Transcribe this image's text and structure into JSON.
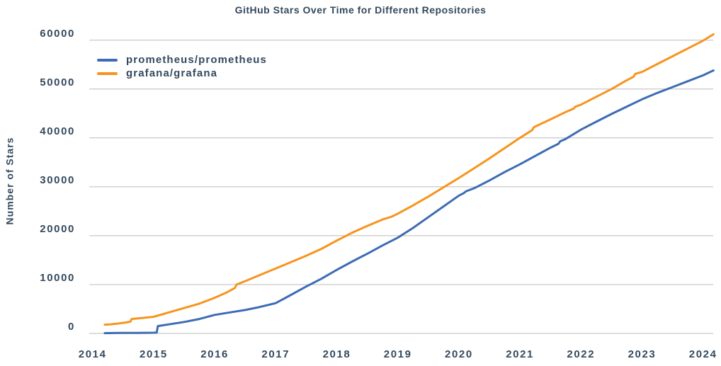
{
  "figure": {
    "background": "#ffffff",
    "text_color": "#34495E",
    "grid_color": "#BBBBBB"
  },
  "chart_data": {
    "type": "line",
    "title": "GitHub Stars Over Time for Different Repositories",
    "xlabel": "",
    "ylabel": "Number of Stars",
    "xlim": [
      2013.8,
      2024.2
    ],
    "ylim": [
      0,
      60000
    ],
    "grid": "horizontal",
    "legend_position": "upper-left-inside",
    "x_ticks": [
      {
        "value": 2014,
        "label": "2014"
      },
      {
        "value": 2015,
        "label": "2015"
      },
      {
        "value": 2016,
        "label": "2016"
      },
      {
        "value": 2017,
        "label": "2017"
      },
      {
        "value": 2018,
        "label": "2018"
      },
      {
        "value": 2019,
        "label": "2019"
      },
      {
        "value": 2020,
        "label": "2020"
      },
      {
        "value": 2021,
        "label": "2021"
      },
      {
        "value": 2022,
        "label": "2022"
      },
      {
        "value": 2023,
        "label": "2023"
      },
      {
        "value": 2024,
        "label": "2024"
      }
    ],
    "y_ticks": [
      {
        "value": 0,
        "label": "0"
      },
      {
        "value": 10000,
        "label": "10000"
      },
      {
        "value": 20000,
        "label": "20000"
      },
      {
        "value": 30000,
        "label": "30000"
      },
      {
        "value": 40000,
        "label": "40000"
      },
      {
        "value": 50000,
        "label": "50000"
      },
      {
        "value": 60000,
        "label": "60000"
      }
    ],
    "series": [
      {
        "name": "prometheus/prometheus",
        "color": "#3D6CB4",
        "points": [
          [
            2014.2,
            60
          ],
          [
            2014.35,
            80
          ],
          [
            2014.5,
            100
          ],
          [
            2014.75,
            120
          ],
          [
            2015.0,
            150
          ],
          [
            2015.05,
            170
          ],
          [
            2015.07,
            1500
          ],
          [
            2015.25,
            1850
          ],
          [
            2015.5,
            2350
          ],
          [
            2015.75,
            2950
          ],
          [
            2016.0,
            3800
          ],
          [
            2016.25,
            4300
          ],
          [
            2016.5,
            4800
          ],
          [
            2016.7,
            5300
          ],
          [
            2017.0,
            6200
          ],
          [
            2017.25,
            7900
          ],
          [
            2017.5,
            9600
          ],
          [
            2017.75,
            11200
          ],
          [
            2018.0,
            13000
          ],
          [
            2018.25,
            14700
          ],
          [
            2018.5,
            16300
          ],
          [
            2018.75,
            18000
          ],
          [
            2019.0,
            19600
          ],
          [
            2019.25,
            21600
          ],
          [
            2019.5,
            23800
          ],
          [
            2019.75,
            26000
          ],
          [
            2020.0,
            28200
          ],
          [
            2020.08,
            28700
          ],
          [
            2020.12,
            29100
          ],
          [
            2020.25,
            29700
          ],
          [
            2020.5,
            31300
          ],
          [
            2020.75,
            33000
          ],
          [
            2021.0,
            34600
          ],
          [
            2021.25,
            36300
          ],
          [
            2021.5,
            38000
          ],
          [
            2021.63,
            38800
          ],
          [
            2021.66,
            39300
          ],
          [
            2021.75,
            39800
          ],
          [
            2022.0,
            41700
          ],
          [
            2022.25,
            43300
          ],
          [
            2022.5,
            44900
          ],
          [
            2022.75,
            46400
          ],
          [
            2023.0,
            47900
          ],
          [
            2023.25,
            49200
          ],
          [
            2023.5,
            50400
          ],
          [
            2023.75,
            51600
          ],
          [
            2024.0,
            52800
          ],
          [
            2024.17,
            53800
          ]
        ]
      },
      {
        "name": "grafana/grafana",
        "color": "#F7941E",
        "points": [
          [
            2014.2,
            1800
          ],
          [
            2014.28,
            1850
          ],
          [
            2014.4,
            2000
          ],
          [
            2014.55,
            2250
          ],
          [
            2014.62,
            2400
          ],
          [
            2014.64,
            2950
          ],
          [
            2014.8,
            3150
          ],
          [
            2015.0,
            3400
          ],
          [
            2015.25,
            4300
          ],
          [
            2015.5,
            5200
          ],
          [
            2015.75,
            6100
          ],
          [
            2016.0,
            7300
          ],
          [
            2016.2,
            8400
          ],
          [
            2016.33,
            9300
          ],
          [
            2016.36,
            10000
          ],
          [
            2016.5,
            10700
          ],
          [
            2016.75,
            12000
          ],
          [
            2017.0,
            13300
          ],
          [
            2017.25,
            14600
          ],
          [
            2017.5,
            15900
          ],
          [
            2017.75,
            17300
          ],
          [
            2018.0,
            19000
          ],
          [
            2018.25,
            20600
          ],
          [
            2018.5,
            22000
          ],
          [
            2018.75,
            23300
          ],
          [
            2018.9,
            23900
          ],
          [
            2019.0,
            24500
          ],
          [
            2019.25,
            26200
          ],
          [
            2019.5,
            28000
          ],
          [
            2019.75,
            29900
          ],
          [
            2020.0,
            31800
          ],
          [
            2020.25,
            33800
          ],
          [
            2020.5,
            35800
          ],
          [
            2020.75,
            37900
          ],
          [
            2021.0,
            40000
          ],
          [
            2021.2,
            41600
          ],
          [
            2021.23,
            42200
          ],
          [
            2021.5,
            43800
          ],
          [
            2021.75,
            45300
          ],
          [
            2021.88,
            46000
          ],
          [
            2021.91,
            46400
          ],
          [
            2022.0,
            46800
          ],
          [
            2022.25,
            48400
          ],
          [
            2022.5,
            50000
          ],
          [
            2022.75,
            51800
          ],
          [
            2022.86,
            52500
          ],
          [
            2022.89,
            53100
          ],
          [
            2023.0,
            53500
          ],
          [
            2023.25,
            55100
          ],
          [
            2023.5,
            56700
          ],
          [
            2023.75,
            58300
          ],
          [
            2024.0,
            59900
          ],
          [
            2024.17,
            61200
          ]
        ]
      }
    ]
  }
}
